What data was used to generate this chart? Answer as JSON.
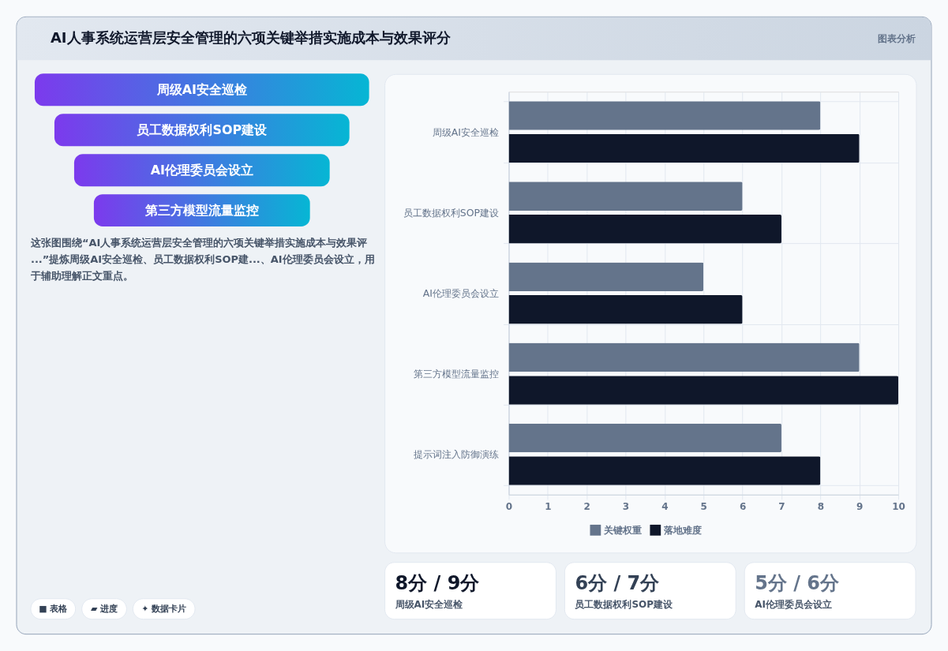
{
  "chart_data": [
    {
      "type": "other",
      "title": "AI人事系统运营层安全管理的六项关键举措实施成本与效果评分",
      "annotations": [
        "图表分析"
      ]
    },
    {
      "type": "other",
      "categories": [
        "周级AI安全巡检",
        "员工数据权利SOP建设",
        "AI伦理委员会设立",
        "第三方模型流量监控"
      ],
      "annotations": [
        "这张图围绕“AI人事系统运营层安全管理的六项关键举措实施成本与效果评...”提炼周级AI安全巡检、员工数据权利SOP建...、AI伦理委员会设立，用于辅助理解正文重点。"
      ]
    },
    {
      "type": "other",
      "annotations": [
        "■ 表格",
        "▰ 进度",
        "✦ 数据卡片"
      ]
    },
    {
      "type": "bar",
      "orientation": "horizontal",
      "categories": [
        "周级AI安全巡检",
        "员工数据权利SOP建设",
        "AI伦理委员会设立",
        "第三方模型流量监控",
        "提示词注入防御演练"
      ],
      "series": [
        {
          "name": "关键权重",
          "color": "#64748b",
          "values": [
            8,
            6,
            5,
            9,
            7
          ]
        },
        {
          "name": "落地难度",
          "color": "#0f172a",
          "values": [
            9,
            7,
            6,
            10,
            8
          ]
        }
      ],
      "xlim": [
        0,
        10
      ],
      "xticks": [
        0,
        1,
        2,
        3,
        4,
        5,
        6,
        7,
        8,
        9,
        10
      ],
      "grid": true,
      "legend": "bottom"
    },
    {
      "type": "other",
      "title": "8分 / 9分",
      "subtitle": "周级AI安全巡检"
    },
    {
      "type": "other",
      "title": "6分 / 7分",
      "subtitle": "员工数据权利SOP建设"
    },
    {
      "type": "other",
      "title": "5分 / 6分",
      "subtitle": "AI伦理委员会设立"
    }
  ]
}
